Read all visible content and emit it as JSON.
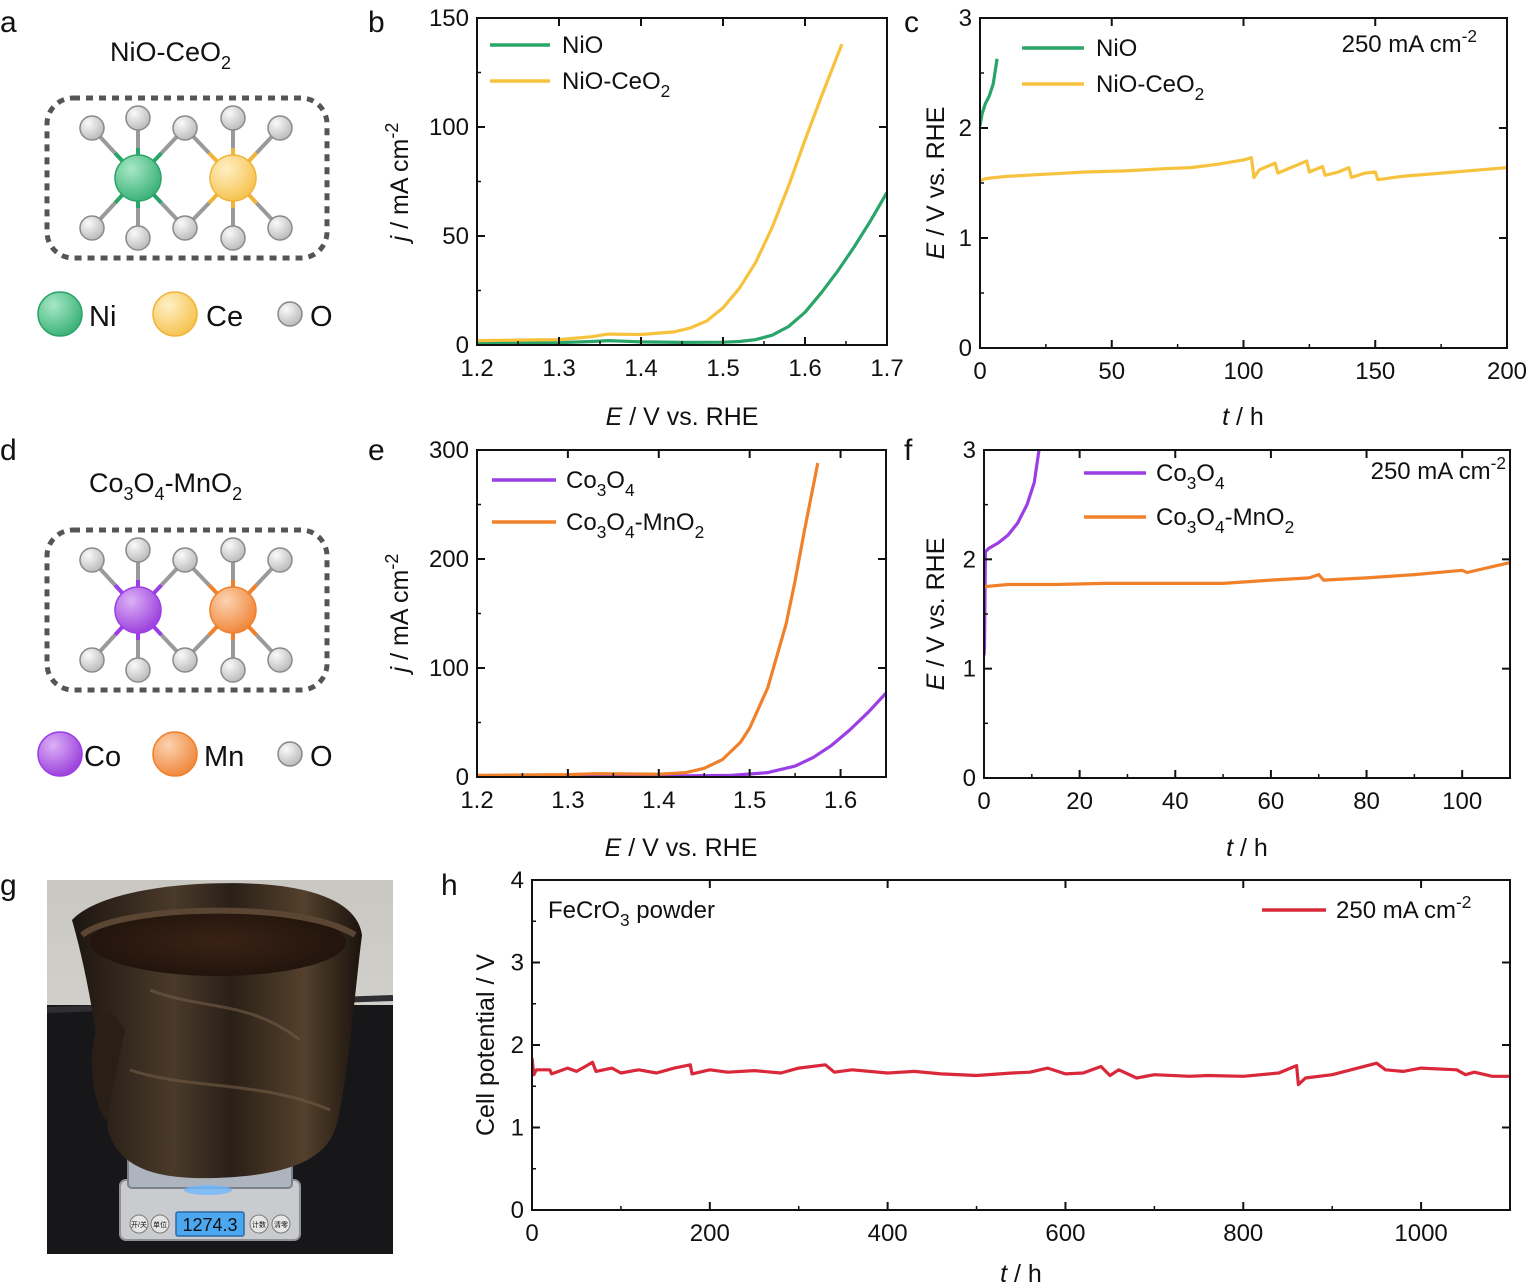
{
  "colors": {
    "nio": "#2aa568",
    "nio_ceo2": "#f7c23e",
    "co3o4": "#9b3ee6",
    "co3o4_mno2": "#f0802a",
    "fecro3": "#d9283a",
    "ni_atom": "#5ec893",
    "ce_atom": "#fbd072",
    "co_atom": "#b566e8",
    "mn_atom": "#f7a063",
    "o_atom": "#d8d8d8"
  },
  "panels": {
    "a": {
      "letter": "a",
      "title": "NiO-CeO",
      "title_sub": "2",
      "legend": [
        {
          "label": "Ni",
          "icon": "ni-atom-icon"
        },
        {
          "label": "Ce",
          "icon": "ce-atom-icon"
        },
        {
          "label": "O",
          "icon": "oxygen-atom-icon"
        }
      ]
    },
    "b": {
      "letter": "b"
    },
    "c": {
      "letter": "c"
    },
    "d": {
      "letter": "d",
      "title_parts": [
        "Co",
        "3",
        "O",
        "4",
        "-MnO",
        "2"
      ],
      "legend": [
        {
          "label": "Co",
          "icon": "co-atom-icon"
        },
        {
          "label": "Mn",
          "icon": "mn-atom-icon"
        },
        {
          "label": "O",
          "icon": "oxygen-atom-icon"
        }
      ]
    },
    "e": {
      "letter": "e"
    },
    "f": {
      "letter": "f"
    },
    "g": {
      "letter": "g",
      "photo_icon": "powder-bag-on-scale-photo",
      "scale_readout": "1274.3",
      "scale_buttons": [
        "开/关",
        "单位",
        "计数",
        "清零"
      ]
    },
    "h": {
      "letter": "h"
    }
  },
  "chart_data": [
    {
      "id": "b",
      "type": "line",
      "xlabel_italic": "E",
      "xlabel_rest": " / V vs. RHE",
      "ylabel_italic": "j",
      "ylabel_rest": " / mA cm",
      "ylabel_sup": "-2",
      "xlim": [
        1.2,
        1.7
      ],
      "ylim": [
        0,
        150
      ],
      "xticks": [
        1.2,
        1.3,
        1.4,
        1.5,
        1.6,
        1.7
      ],
      "yticks": [
        0,
        50,
        100,
        150
      ],
      "grid": false,
      "legend_position": "top-left",
      "series": [
        {
          "name": "NiO",
          "color_key": "nio",
          "x": [
            1.2,
            1.3,
            1.34,
            1.36,
            1.4,
            1.45,
            1.5,
            1.52,
            1.54,
            1.56,
            1.58,
            1.6,
            1.62,
            1.64,
            1.66,
            1.68,
            1.7
          ],
          "y": [
            1.0,
            1.1,
            1.6,
            2.0,
            1.4,
            1.2,
            1.3,
            1.6,
            2.5,
            4.5,
            8.5,
            15,
            24,
            34,
            45,
            57,
            70
          ]
        },
        {
          "name": "NiO-CeO₂",
          "color_key": "nio_ceo2",
          "x": [
            1.2,
            1.3,
            1.34,
            1.36,
            1.4,
            1.44,
            1.46,
            1.48,
            1.5,
            1.52,
            1.54,
            1.56,
            1.58,
            1.6,
            1.62,
            1.645
          ],
          "y": [
            2.0,
            2.5,
            3.8,
            5.0,
            4.8,
            6.0,
            7.8,
            11,
            17,
            26,
            38,
            54,
            73,
            94,
            114,
            138
          ]
        }
      ]
    },
    {
      "id": "c",
      "type": "line",
      "xlabel_italic": "t",
      "xlabel_rest": " / h",
      "ylabel_italic": "E",
      "ylabel_rest": " / V vs. RHE",
      "xlim": [
        0,
        200
      ],
      "ylim": [
        0,
        3
      ],
      "xticks": [
        0,
        50,
        100,
        150,
        200
      ],
      "yticks": [
        0,
        1,
        2,
        3
      ],
      "grid": false,
      "legend_position": "top-left",
      "annotation": "250 mA cm",
      "annotation_sup": "-2",
      "series": [
        {
          "name": "NiO",
          "color_key": "nio",
          "x": [
            0,
            0.8,
            2,
            3.5,
            5,
            6.5
          ],
          "y": [
            2.02,
            2.13,
            2.22,
            2.29,
            2.4,
            2.63
          ]
        },
        {
          "name": "NiO-CeO₂",
          "color_key": "nio_ceo2",
          "x": [
            0,
            2,
            10,
            25,
            40,
            55,
            70,
            80,
            90,
            100,
            103,
            104,
            106,
            112,
            113,
            118,
            124,
            125,
            130,
            131,
            136,
            140,
            141,
            146,
            150,
            151,
            160,
            175,
            190,
            200
          ],
          "y": [
            1.52,
            1.54,
            1.56,
            1.58,
            1.6,
            1.61,
            1.63,
            1.64,
            1.67,
            1.71,
            1.73,
            1.55,
            1.62,
            1.68,
            1.59,
            1.64,
            1.7,
            1.6,
            1.65,
            1.57,
            1.6,
            1.64,
            1.55,
            1.59,
            1.6,
            1.53,
            1.56,
            1.59,
            1.62,
            1.64
          ]
        }
      ]
    },
    {
      "id": "e",
      "type": "line",
      "xlabel_italic": "E",
      "xlabel_rest": " / V vs. RHE",
      "ylabel_italic": "j",
      "ylabel_rest": " / mA cm",
      "ylabel_sup": "-2",
      "xlim": [
        1.2,
        1.65
      ],
      "ylim": [
        0,
        300
      ],
      "xticks": [
        1.2,
        1.3,
        1.4,
        1.5,
        1.6
      ],
      "yticks": [
        0,
        100,
        200,
        300
      ],
      "grid": false,
      "legend_position": "top-left",
      "series": [
        {
          "name": "Co₃O₄",
          "color_key": "co3o4",
          "x": [
            1.2,
            1.3,
            1.4,
            1.48,
            1.52,
            1.55,
            1.57,
            1.59,
            1.61,
            1.63,
            1.65
          ],
          "y": [
            0.5,
            0.6,
            0.8,
            1.5,
            4,
            10,
            18,
            29,
            43,
            59,
            77
          ]
        },
        {
          "name": "Co₃O₄-MnO₂",
          "color_key": "co3o4_mno2",
          "x": [
            1.2,
            1.3,
            1.33,
            1.4,
            1.43,
            1.45,
            1.47,
            1.49,
            1.5,
            1.52,
            1.54,
            1.55,
            1.56,
            1.575
          ],
          "y": [
            1.5,
            2.2,
            3.0,
            2.6,
            4,
            8,
            16,
            32,
            45,
            82,
            140,
            180,
            225,
            288
          ]
        }
      ]
    },
    {
      "id": "f",
      "type": "line",
      "xlabel_italic": "t",
      "xlabel_rest": " / h",
      "ylabel_italic": "E",
      "ylabel_rest": " / V vs. RHE",
      "xlim": [
        0,
        110
      ],
      "ylim": [
        0,
        3
      ],
      "xticks": [
        0,
        20,
        40,
        60,
        80,
        100
      ],
      "yticks": [
        0,
        1,
        2,
        3
      ],
      "grid": false,
      "legend_position": "top-left",
      "annotation": "250 mA cm",
      "annotation_sup": "-2",
      "series": [
        {
          "name": "Co₃O₄",
          "color_key": "co3o4",
          "x": [
            0,
            0.1,
            0.3,
            1,
            3,
            5,
            7,
            9,
            10.5,
            11.5
          ],
          "y": [
            1.12,
            1.2,
            2.07,
            2.1,
            2.15,
            2.22,
            2.33,
            2.5,
            2.7,
            3.0
          ]
        },
        {
          "name": "Co₃O₄-MnO₂",
          "color_key": "co3o4_mno2",
          "x": [
            0,
            5,
            15,
            25,
            40,
            50,
            60,
            68,
            70,
            71,
            80,
            90,
            100,
            101,
            110
          ],
          "y": [
            1.75,
            1.77,
            1.77,
            1.78,
            1.78,
            1.78,
            1.81,
            1.83,
            1.86,
            1.81,
            1.83,
            1.86,
            1.9,
            1.88,
            1.97
          ]
        }
      ]
    },
    {
      "id": "h",
      "type": "line",
      "xlabel_italic": "t",
      "xlabel_rest": " / h",
      "ylabel": "Cell potential / V",
      "xlim": [
        0,
        1100
      ],
      "ylim": [
        0,
        4
      ],
      "xticks": [
        0,
        200,
        400,
        600,
        800,
        1000
      ],
      "yticks": [
        0,
        1,
        2,
        3,
        4
      ],
      "grid": false,
      "legend_position": "top-right",
      "annotation": "FeCrO",
      "annotation_sub": "3",
      "annotation_rest": " powder",
      "series": [
        {
          "name": "250 mA cm⁻²",
          "color_key": "fecro3",
          "x": [
            0,
            2,
            5,
            20,
            22,
            40,
            50,
            60,
            68,
            72,
            90,
            100,
            120,
            140,
            160,
            178,
            180,
            200,
            220,
            250,
            280,
            300,
            330,
            340,
            360,
            400,
            430,
            460,
            500,
            540,
            560,
            580,
            600,
            620,
            640,
            650,
            660,
            680,
            700,
            740,
            760,
            800,
            840,
            860,
            862,
            870,
            900,
            950,
            960,
            980,
            1000,
            1040,
            1050,
            1060,
            1080,
            1100
          ],
          "y": [
            1.84,
            1.64,
            1.7,
            1.7,
            1.65,
            1.72,
            1.68,
            1.74,
            1.79,
            1.68,
            1.72,
            1.66,
            1.7,
            1.66,
            1.72,
            1.76,
            1.65,
            1.7,
            1.67,
            1.69,
            1.66,
            1.72,
            1.76,
            1.67,
            1.7,
            1.66,
            1.68,
            1.65,
            1.63,
            1.66,
            1.67,
            1.72,
            1.65,
            1.66,
            1.74,
            1.63,
            1.7,
            1.6,
            1.64,
            1.62,
            1.63,
            1.62,
            1.66,
            1.75,
            1.52,
            1.6,
            1.64,
            1.78,
            1.7,
            1.68,
            1.72,
            1.7,
            1.64,
            1.67,
            1.62,
            1.62
          ]
        }
      ]
    }
  ]
}
